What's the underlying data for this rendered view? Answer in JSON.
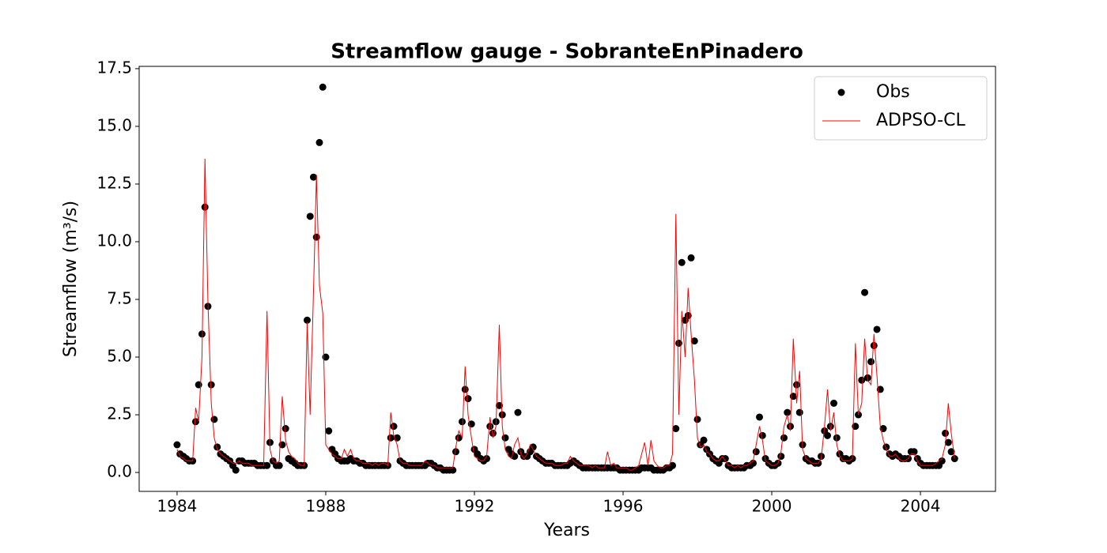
{
  "chart_data": {
    "type": "scatter_line",
    "title": "Streamflow gauge - SobranteEnPinadero",
    "xlabel": "Years",
    "ylabel": "Streamflow (m³/s)",
    "xlim": [
      1982.98,
      2006.02
    ],
    "ylim": [
      -0.82,
      17.6
    ],
    "xticks": [
      1984,
      1988,
      1992,
      1996,
      2000,
      2004
    ],
    "yticks": [
      {
        "value": 0,
        "label": "0.0"
      },
      2.5,
      {
        "value": 5,
        "label": "5.0"
      },
      7.5,
      {
        "value": 10,
        "label": "10.0"
      },
      12.5,
      {
        "value": 15,
        "label": "15.0"
      },
      17.5
    ],
    "legend": "upper right",
    "x": [
      1984,
      1984.08,
      1984.17,
      1984.25,
      1984.33,
      1984.42,
      1984.5,
      1984.58,
      1984.67,
      1984.75,
      1984.83,
      1984.92,
      1985,
      1985.08,
      1985.17,
      1985.25,
      1985.33,
      1985.42,
      1985.5,
      1985.58,
      1985.67,
      1985.75,
      1985.83,
      1985.92,
      1986,
      1986.08,
      1986.17,
      1986.25,
      1986.33,
      1986.42,
      1986.5,
      1986.58,
      1986.67,
      1986.75,
      1986.83,
      1986.92,
      1987,
      1987.08,
      1987.17,
      1987.25,
      1987.33,
      1987.42,
      1987.5,
      1987.58,
      1987.67,
      1987.75,
      1987.83,
      1987.92,
      1988,
      1988.08,
      1988.17,
      1988.25,
      1988.33,
      1988.42,
      1988.5,
      1988.58,
      1988.67,
      1988.75,
      1988.83,
      1988.92,
      1989,
      1989.08,
      1989.17,
      1989.25,
      1989.33,
      1989.42,
      1989.5,
      1989.58,
      1989.67,
      1989.75,
      1989.83,
      1989.92,
      1990,
      1990.08,
      1990.17,
      1990.25,
      1990.33,
      1990.42,
      1990.5,
      1990.58,
      1990.67,
      1990.75,
      1990.83,
      1990.92,
      1991,
      1991.08,
      1991.17,
      1991.25,
      1991.33,
      1991.42,
      1991.5,
      1991.58,
      1991.67,
      1991.75,
      1991.83,
      1991.92,
      1992,
      1992.08,
      1992.17,
      1992.25,
      1992.33,
      1992.42,
      1992.5,
      1992.58,
      1992.67,
      1992.75,
      1992.83,
      1992.92,
      1993,
      1993.08,
      1993.17,
      1993.25,
      1993.33,
      1993.42,
      1993.5,
      1993.58,
      1993.67,
      1993.75,
      1993.83,
      1993.92,
      1994,
      1994.08,
      1994.17,
      1994.25,
      1994.33,
      1994.42,
      1994.5,
      1994.58,
      1994.67,
      1994.75,
      1994.83,
      1994.92,
      1995,
      1995.08,
      1995.17,
      1995.25,
      1995.33,
      1995.42,
      1995.5,
      1995.58,
      1995.67,
      1995.75,
      1995.83,
      1995.92,
      1996,
      1996.08,
      1996.17,
      1996.25,
      1996.33,
      1996.42,
      1996.5,
      1996.58,
      1996.67,
      1996.75,
      1996.83,
      1996.92,
      1997,
      1997.08,
      1997.17,
      1997.25,
      1997.33,
      1997.42,
      1997.5,
      1997.58,
      1997.67,
      1997.75,
      1997.83,
      1997.92,
      1998,
      1998.08,
      1998.17,
      1998.25,
      1998.33,
      1998.42,
      1998.5,
      1998.58,
      1998.67,
      1998.75,
      1998.83,
      1998.92,
      1999,
      1999.08,
      1999.17,
      1999.25,
      1999.33,
      1999.42,
      1999.5,
      1999.58,
      1999.67,
      1999.75,
      1999.83,
      1999.92,
      2000,
      2000.08,
      2000.17,
      2000.25,
      2000.33,
      2000.42,
      2000.5,
      2000.58,
      2000.67,
      2000.75,
      2000.83,
      2000.92,
      2001,
      2001.08,
      2001.17,
      2001.25,
      2001.33,
      2001.42,
      2001.5,
      2001.58,
      2001.67,
      2001.75,
      2001.83,
      2001.92,
      2002,
      2002.08,
      2002.17,
      2002.25,
      2002.33,
      2002.42,
      2002.5,
      2002.58,
      2002.67,
      2002.75,
      2002.83,
      2002.92,
      2003,
      2003.08,
      2003.17,
      2003.25,
      2003.33,
      2003.42,
      2003.5,
      2003.58,
      2003.67,
      2003.75,
      2003.83,
      2003.92,
      2004,
      2004.08,
      2004.17,
      2004.25,
      2004.33,
      2004.42,
      2004.5,
      2004.58,
      2004.67,
      2004.75,
      2004.83,
      2004.92
    ],
    "series": [
      {
        "name": "Obs",
        "color": "#000000",
        "kind": "scatter",
        "values": [
          1.2,
          0.8,
          0.7,
          0.6,
          0.5,
          0.5,
          2.2,
          3.8,
          6.0,
          11.5,
          7.2,
          3.8,
          2.3,
          1.1,
          0.8,
          0.7,
          0.6,
          0.5,
          0.3,
          0.1,
          0.5,
          0.5,
          0.4,
          0.4,
          0.4,
          0.4,
          0.3,
          0.3,
          0.3,
          0.3,
          1.3,
          0.5,
          0.3,
          0.3,
          1.2,
          1.9,
          0.6,
          0.5,
          0.4,
          0.3,
          0.3,
          0.3,
          6.6,
          11.1,
          12.8,
          10.2,
          14.3,
          16.7,
          5.0,
          1.8,
          1.0,
          0.8,
          0.6,
          0.5,
          0.5,
          0.5,
          0.6,
          0.5,
          0.5,
          0.4,
          0.4,
          0.3,
          0.3,
          0.3,
          0.3,
          0.3,
          0.3,
          0.3,
          0.3,
          1.5,
          2.0,
          1.5,
          0.5,
          0.4,
          0.3,
          0.3,
          0.3,
          0.3,
          0.3,
          0.3,
          0.3,
          0.4,
          0.4,
          0.3,
          0.2,
          0.2,
          0.1,
          0.1,
          0.1,
          0.1,
          0.9,
          1.5,
          2.2,
          3.6,
          3.2,
          2.1,
          1.0,
          0.8,
          0.6,
          0.5,
          0.6,
          2.0,
          1.7,
          2.2,
          2.9,
          2.5,
          1.5,
          1.0,
          0.8,
          0.7,
          2.6,
          0.9,
          0.7,
          0.7,
          0.9,
          1.1,
          0.7,
          0.6,
          0.5,
          0.4,
          0.4,
          0.4,
          0.3,
          0.3,
          0.3,
          0.3,
          0.3,
          0.4,
          0.5,
          0.4,
          0.3,
          0.2,
          0.2,
          0.2,
          0.2,
          0.2,
          0.2,
          0.2,
          0.2,
          0.2,
          0.2,
          0.2,
          0.2,
          0.1,
          0.1,
          0.1,
          0.1,
          0.1,
          0.1,
          0.1,
          0.2,
          0.2,
          0.2,
          0.2,
          0.1,
          0.1,
          0.1,
          0.1,
          0.2,
          0.2,
          0.3,
          1.9,
          5.6,
          9.1,
          6.6,
          6.8,
          9.3,
          5.7,
          2.3,
          1.2,
          1.4,
          1.0,
          0.8,
          0.6,
          0.5,
          0.4,
          0.6,
          0.6,
          0.3,
          0.2,
          0.2,
          0.2,
          0.2,
          0.2,
          0.3,
          0.3,
          0.4,
          0.9,
          2.4,
          1.6,
          0.6,
          0.4,
          0.3,
          0.3,
          0.4,
          0.7,
          1.5,
          2.6,
          2.0,
          3.3,
          3.8,
          2.6,
          1.2,
          0.6,
          0.5,
          0.5,
          0.4,
          0.4,
          0.7,
          1.8,
          1.6,
          2.0,
          3.0,
          1.5,
          0.8,
          0.6,
          0.6,
          0.5,
          0.6,
          2.0,
          2.5,
          4.0,
          7.8,
          4.1,
          4.8,
          5.5,
          6.2,
          3.6,
          1.9,
          1.1,
          0.8,
          0.7,
          0.8,
          0.7,
          0.6,
          0.6,
          0.6,
          0.9,
          0.9,
          0.6,
          0.4,
          0.3,
          0.3,
          0.3,
          0.3,
          0.3,
          0.3,
          0.5,
          1.7,
          1.3,
          0.9,
          0.6
        ]
      },
      {
        "name": "ADPSO-CL",
        "color": "#ff0000",
        "kind": "line",
        "values": [
          1.0,
          0.7,
          0.6,
          0.5,
          0.5,
          0.5,
          2.8,
          2.2,
          5.0,
          13.6,
          7.4,
          3.0,
          1.5,
          1.0,
          0.8,
          0.7,
          0.6,
          0.5,
          0.4,
          0.4,
          0.5,
          0.4,
          0.4,
          0.4,
          0.3,
          0.3,
          0.3,
          0.3,
          0.3,
          7.0,
          1.0,
          0.5,
          0.4,
          0.5,
          3.3,
          1.4,
          0.9,
          0.7,
          0.6,
          0.4,
          0.3,
          0.3,
          6.5,
          2.5,
          7.8,
          12.9,
          8.1,
          6.9,
          1.2,
          1.0,
          0.8,
          0.7,
          0.6,
          0.6,
          1.0,
          0.7,
          1.0,
          0.6,
          0.5,
          0.5,
          0.4,
          0.4,
          0.4,
          0.3,
          0.4,
          0.3,
          0.4,
          0.4,
          0.3,
          2.6,
          1.6,
          1.2,
          0.5,
          0.4,
          0.4,
          0.3,
          0.3,
          0.3,
          0.3,
          0.3,
          0.5,
          0.4,
          0.3,
          0.3,
          0.2,
          0.2,
          0.2,
          0.2,
          0.2,
          0.2,
          1.1,
          1.8,
          1.5,
          4.6,
          2.5,
          1.5,
          0.7,
          0.6,
          0.5,
          0.5,
          0.7,
          2.4,
          1.5,
          2.0,
          6.4,
          2.0,
          1.0,
          0.7,
          0.6,
          1.2,
          1.5,
          0.8,
          0.6,
          0.8,
          1.2,
          1.0,
          0.7,
          0.6,
          0.5,
          0.4,
          0.4,
          0.4,
          0.3,
          0.3,
          0.3,
          0.4,
          0.4,
          0.7,
          0.5,
          0.4,
          0.3,
          0.3,
          0.3,
          0.3,
          0.2,
          0.3,
          0.2,
          0.2,
          0.2,
          0.9,
          0.3,
          0.4,
          0.2,
          0.2,
          0.2,
          0.2,
          0.1,
          0.1,
          0.2,
          0.3,
          0.8,
          1.3,
          0.3,
          1.4,
          0.5,
          0.3,
          0.2,
          0.2,
          0.3,
          0.3,
          0.8,
          11.2,
          2.5,
          7.0,
          5.0,
          8.0,
          6.0,
          4.0,
          1.5,
          1.1,
          1.2,
          0.9,
          0.8,
          0.6,
          0.5,
          0.5,
          0.7,
          0.5,
          0.3,
          0.3,
          0.2,
          0.3,
          0.2,
          0.3,
          0.3,
          0.4,
          0.5,
          1.2,
          2.0,
          1.4,
          0.5,
          0.4,
          0.3,
          0.3,
          0.4,
          0.9,
          2.0,
          2.5,
          1.8,
          5.8,
          3.0,
          4.4,
          1.0,
          0.6,
          0.5,
          0.4,
          0.4,
          0.4,
          0.6,
          2.0,
          3.6,
          1.8,
          2.6,
          1.2,
          0.7,
          0.5,
          0.5,
          0.5,
          0.6,
          5.6,
          2.5,
          3.0,
          5.8,
          4.0,
          3.8,
          6.0,
          4.2,
          2.0,
          1.4,
          1.0,
          0.7,
          0.7,
          0.8,
          0.6,
          0.5,
          0.5,
          0.6,
          0.8,
          0.8,
          0.5,
          0.3,
          0.3,
          0.3,
          0.3,
          0.3,
          0.4,
          0.5,
          0.6,
          1.2,
          3.0,
          1.7,
          0.6
        ]
      }
    ]
  }
}
